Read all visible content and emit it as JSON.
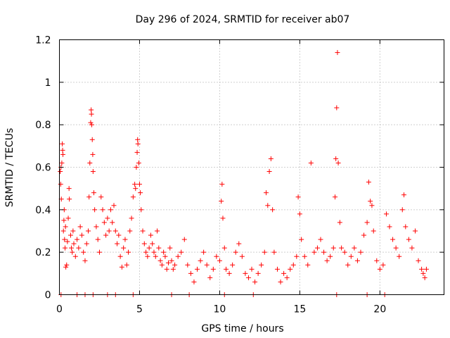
{
  "chart_data": {
    "type": "scatter",
    "title": "Day 296 of 2024, SRMTID for receiver ab07",
    "xlabel": "GPS time / hours",
    "ylabel": "SRMTID / TECUs",
    "xlim": [
      0,
      24
    ],
    "ylim": [
      0,
      1.2
    ],
    "x_ticks": [
      0,
      5,
      10,
      15,
      20
    ],
    "x_tick_labels": [
      "0",
      "5",
      "10",
      "15",
      "20"
    ],
    "y_ticks": [
      0,
      0.2,
      0.4,
      0.6,
      0.8,
      1.0,
      1.2
    ],
    "y_tick_labels": [
      "0",
      "0.2",
      "0.4",
      "0.6",
      "0.8",
      "1",
      "1.2"
    ],
    "grid": true,
    "marker": "+",
    "series": [
      {
        "name": "SRMTID",
        "color": "#ff0000",
        "points": [
          [
            0.05,
            0.58
          ],
          [
            0.08,
            0.52
          ],
          [
            0.1,
            0.6
          ],
          [
            0.12,
            0.45
          ],
          [
            0.15,
            0.62
          ],
          [
            0.18,
            0.71
          ],
          [
            0.2,
            0.68
          ],
          [
            0.22,
            0.66
          ],
          [
            0.25,
            0.3
          ],
          [
            0.28,
            0.35
          ],
          [
            0.3,
            0.4
          ],
          [
            0.32,
            0.26
          ],
          [
            0.35,
            0.22
          ],
          [
            0.38,
            0.32
          ],
          [
            0.4,
            0.13
          ],
          [
            0.45,
            0.14
          ],
          [
            0.5,
            0.25
          ],
          [
            0.55,
            0.36
          ],
          [
            0.6,
            0.5
          ],
          [
            0.62,
            0.45
          ],
          [
            0.7,
            0.28
          ],
          [
            0.75,
            0.22
          ],
          [
            0.8,
            0.2
          ],
          [
            0.85,
            0.3
          ],
          [
            0.9,
            0.24
          ],
          [
            1.0,
            0.18
          ],
          [
            1.1,
            0.26
          ],
          [
            1.2,
            0.22
          ],
          [
            1.3,
            0.32
          ],
          [
            1.4,
            0.28
          ],
          [
            1.5,
            0.2
          ],
          [
            1.6,
            0.16
          ],
          [
            1.7,
            0.24
          ],
          [
            1.8,
            0.3
          ],
          [
            1.85,
            0.46
          ],
          [
            1.9,
            0.62
          ],
          [
            1.95,
            0.81
          ],
          [
            1.98,
            0.87
          ],
          [
            2.0,
            0.85
          ],
          [
            2.02,
            0.8
          ],
          [
            2.05,
            0.73
          ],
          [
            2.08,
            0.66
          ],
          [
            2.1,
            0.58
          ],
          [
            2.15,
            0.48
          ],
          [
            2.2,
            0.4
          ],
          [
            2.3,
            0.32
          ],
          [
            2.4,
            0.26
          ],
          [
            2.5,
            0.2
          ],
          [
            2.6,
            0.46
          ],
          [
            2.7,
            0.4
          ],
          [
            2.8,
            0.34
          ],
          [
            2.9,
            0.28
          ],
          [
            3.0,
            0.36
          ],
          [
            3.1,
            0.3
          ],
          [
            3.2,
            0.4
          ],
          [
            3.3,
            0.34
          ],
          [
            3.4,
            0.42
          ],
          [
            3.5,
            0.3
          ],
          [
            3.6,
            0.24
          ],
          [
            3.7,
            0.28
          ],
          [
            3.8,
            0.18
          ],
          [
            3.9,
            0.13
          ],
          [
            4.0,
            0.22
          ],
          [
            4.1,
            0.26
          ],
          [
            4.2,
            0.14
          ],
          [
            4.3,
            0.2
          ],
          [
            4.4,
            0.3
          ],
          [
            4.5,
            0.36
          ],
          [
            4.6,
            0.46
          ],
          [
            4.7,
            0.52
          ],
          [
            4.75,
            0.5
          ],
          [
            4.8,
            0.6
          ],
          [
            4.85,
            0.67
          ],
          [
            4.88,
            0.73
          ],
          [
            4.9,
            0.71
          ],
          [
            4.95,
            0.62
          ],
          [
            5.0,
            0.52
          ],
          [
            5.05,
            0.48
          ],
          [
            5.1,
            0.4
          ],
          [
            5.2,
            0.3
          ],
          [
            5.3,
            0.24
          ],
          [
            5.4,
            0.2
          ],
          [
            5.5,
            0.18
          ],
          [
            5.6,
            0.22
          ],
          [
            5.7,
            0.28
          ],
          [
            5.8,
            0.24
          ],
          [
            5.9,
            0.2
          ],
          [
            6.0,
            0.18
          ],
          [
            6.1,
            0.3
          ],
          [
            6.2,
            0.22
          ],
          [
            6.3,
            0.16
          ],
          [
            6.4,
            0.14
          ],
          [
            6.5,
            0.2
          ],
          [
            6.6,
            0.18
          ],
          [
            6.7,
            0.12
          ],
          [
            6.8,
            0.15
          ],
          [
            6.9,
            0.22
          ],
          [
            7.0,
            0.16
          ],
          [
            7.1,
            0.12
          ],
          [
            7.2,
            0.14
          ],
          [
            7.4,
            0.18
          ],
          [
            7.6,
            0.2
          ],
          [
            7.8,
            0.26
          ],
          [
            8.0,
            0.14
          ],
          [
            8.2,
            0.1
          ],
          [
            8.4,
            0.06
          ],
          [
            8.6,
            0.12
          ],
          [
            8.8,
            0.16
          ],
          [
            9.0,
            0.2
          ],
          [
            9.2,
            0.14
          ],
          [
            9.4,
            0.08
          ],
          [
            9.6,
            0.12
          ],
          [
            9.8,
            0.18
          ],
          [
            10.0,
            0.16
          ],
          [
            10.1,
            0.44
          ],
          [
            10.15,
            0.52
          ],
          [
            10.2,
            0.36
          ],
          [
            10.3,
            0.22
          ],
          [
            10.4,
            0.12
          ],
          [
            10.6,
            0.1
          ],
          [
            10.8,
            0.14
          ],
          [
            11.0,
            0.2
          ],
          [
            11.2,
            0.24
          ],
          [
            11.4,
            0.18
          ],
          [
            11.6,
            0.1
          ],
          [
            11.8,
            0.08
          ],
          [
            12.0,
            0.12
          ],
          [
            12.2,
            0.06
          ],
          [
            12.4,
            0.1
          ],
          [
            12.6,
            0.14
          ],
          [
            12.8,
            0.2
          ],
          [
            12.9,
            0.48
          ],
          [
            13.0,
            0.42
          ],
          [
            13.1,
            0.58
          ],
          [
            13.2,
            0.64
          ],
          [
            13.3,
            0.4
          ],
          [
            13.4,
            0.2
          ],
          [
            13.6,
            0.12
          ],
          [
            13.8,
            0.06
          ],
          [
            14.0,
            0.1
          ],
          [
            14.2,
            0.08
          ],
          [
            14.4,
            0.12
          ],
          [
            14.6,
            0.14
          ],
          [
            14.8,
            0.18
          ],
          [
            14.9,
            0.46
          ],
          [
            15.0,
            0.38
          ],
          [
            15.1,
            0.26
          ],
          [
            15.3,
            0.18
          ],
          [
            15.5,
            0.14
          ],
          [
            15.7,
            0.62
          ],
          [
            15.9,
            0.2
          ],
          [
            16.1,
            0.22
          ],
          [
            16.3,
            0.26
          ],
          [
            16.5,
            0.2
          ],
          [
            16.7,
            0.16
          ],
          [
            16.9,
            0.18
          ],
          [
            17.1,
            0.22
          ],
          [
            17.2,
            0.46
          ],
          [
            17.25,
            0.64
          ],
          [
            17.3,
            0.88
          ],
          [
            17.35,
            1.14
          ],
          [
            17.4,
            0.62
          ],
          [
            17.5,
            0.34
          ],
          [
            17.6,
            0.22
          ],
          [
            17.8,
            0.2
          ],
          [
            18.0,
            0.14
          ],
          [
            18.2,
            0.18
          ],
          [
            18.4,
            0.22
          ],
          [
            18.6,
            0.16
          ],
          [
            18.8,
            0.2
          ],
          [
            19.0,
            0.28
          ],
          [
            19.2,
            0.34
          ],
          [
            19.3,
            0.53
          ],
          [
            19.4,
            0.44
          ],
          [
            19.5,
            0.42
          ],
          [
            19.6,
            0.3
          ],
          [
            19.8,
            0.16
          ],
          [
            20.0,
            0.12
          ],
          [
            20.2,
            0.14
          ],
          [
            20.4,
            0.38
          ],
          [
            20.6,
            0.32
          ],
          [
            20.8,
            0.26
          ],
          [
            21.0,
            0.22
          ],
          [
            21.2,
            0.18
          ],
          [
            21.4,
            0.4
          ],
          [
            21.5,
            0.47
          ],
          [
            21.6,
            0.32
          ],
          [
            21.8,
            0.26
          ],
          [
            22.0,
            0.22
          ],
          [
            22.2,
            0.3
          ],
          [
            22.4,
            0.16
          ],
          [
            22.6,
            0.12
          ],
          [
            22.7,
            0.1
          ],
          [
            22.8,
            0.08
          ],
          [
            22.9,
            0.12
          ],
          [
            0.1,
            0.0
          ],
          [
            1.1,
            0.0
          ],
          [
            1.6,
            0.0
          ],
          [
            2.1,
            0.0
          ],
          [
            3.0,
            0.0
          ],
          [
            3.5,
            0.0
          ],
          [
            4.6,
            0.0
          ],
          [
            7.0,
            0.0
          ],
          [
            8.1,
            0.0
          ],
          [
            10.3,
            0.0
          ],
          [
            12.1,
            0.0
          ],
          [
            17.3,
            0.0
          ],
          [
            19.2,
            0.0
          ],
          [
            20.3,
            0.0
          ]
        ]
      }
    ]
  }
}
